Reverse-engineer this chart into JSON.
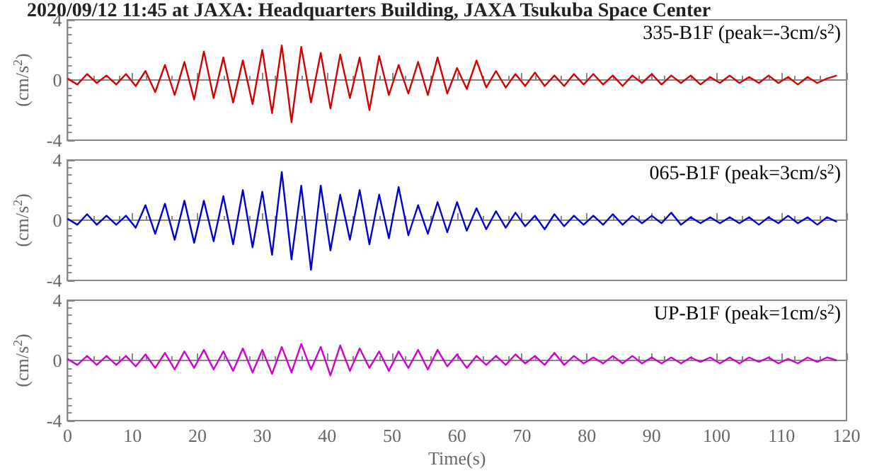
{
  "chart_data": [
    {
      "type": "line",
      "title": "2020/09/12 11:45 at JAXA: Headquarters Building, JAXA Tsukuba Space Center",
      "ylabel": "(cm/s$^{2}$)",
      "annotations": [
        "335-B1F (peak=-3cm/s$^{2}$)"
      ],
      "tick_labels": "y",
      "xlim": [
        0,
        120
      ],
      "xticks": [
        0,
        10,
        20,
        30,
        40,
        50,
        60,
        70,
        80,
        90,
        100,
        110,
        120
      ],
      "ylim": [
        -4,
        4
      ],
      "yticks": [
        -4,
        0,
        4
      ],
      "x": [
        0,
        1.5,
        3,
        4.5,
        6,
        7.5,
        9,
        10.5,
        12,
        13.5,
        15,
        16.5,
        18,
        19.5,
        21,
        22.5,
        24,
        25.5,
        27,
        28.5,
        30,
        31.5,
        33,
        34.5,
        36,
        37.5,
        39,
        40.5,
        42,
        43.5,
        45,
        46.5,
        48,
        49.5,
        51,
        52.5,
        54,
        55.5,
        57,
        58.5,
        60,
        61.5,
        63,
        64.5,
        66,
        67.5,
        69,
        70.5,
        72,
        73.5,
        75,
        76.5,
        78,
        79.5,
        81,
        82.5,
        84,
        85.5,
        87,
        88.5,
        90,
        91.5,
        93,
        94.5,
        96,
        97.5,
        99,
        100.5,
        102,
        103.5,
        105,
        106.5,
        108,
        109.5,
        111,
        112.5,
        114,
        115.5,
        117,
        118.5
      ],
      "series": [
        {
          "color": "#d40000",
          "values": [
            0.1,
            -0.3,
            0.4,
            -0.2,
            0.3,
            -0.3,
            0.4,
            -0.4,
            0.6,
            -0.8,
            1.0,
            -1.0,
            1.2,
            -1.3,
            1.9,
            -1.2,
            1.5,
            -1.5,
            1.3,
            -1.6,
            2.0,
            -2.2,
            2.3,
            -2.8,
            2.2,
            -1.5,
            1.8,
            -1.9,
            1.7,
            -1.2,
            1.5,
            -2.0,
            1.6,
            -1.0,
            1.0,
            -0.9,
            1.2,
            -1.0,
            1.5,
            -0.9,
            0.8,
            -0.6,
            1.3,
            -0.5,
            0.6,
            -0.5,
            0.4,
            -0.4,
            0.5,
            -0.4,
            0.3,
            -0.4,
            0.4,
            -0.3,
            0.4,
            -0.3,
            0.3,
            -0.4,
            0.3,
            -0.2,
            0.4,
            -0.3,
            0.3,
            -0.2,
            0.3,
            -0.3,
            0.2,
            -0.2,
            0.3,
            -0.2,
            0.2,
            -0.2,
            0.3,
            -0.2,
            0.2,
            -0.3,
            0.2,
            -0.2,
            0.1,
            0.3
          ]
        }
      ]
    },
    {
      "type": "line",
      "ylabel": "(cm/s$^{2}$)",
      "annotations": [
        "065-B1F (peak=3cm/s$^{2}$)"
      ],
      "tick_labels": "y",
      "xlim": [
        0,
        120
      ],
      "xticks": [
        0,
        10,
        20,
        30,
        40,
        50,
        60,
        70,
        80,
        90,
        100,
        110,
        120
      ],
      "ylim": [
        -4,
        4
      ],
      "yticks": [
        -4,
        0,
        4
      ],
      "x": [
        0,
        1.5,
        3,
        4.5,
        6,
        7.5,
        9,
        10.5,
        12,
        13.5,
        15,
        16.5,
        18,
        19.5,
        21,
        22.5,
        24,
        25.5,
        27,
        28.5,
        30,
        31.5,
        33,
        34.5,
        36,
        37.5,
        39,
        40.5,
        42,
        43.5,
        45,
        46.5,
        48,
        49.5,
        51,
        52.5,
        54,
        55.5,
        57,
        58.5,
        60,
        61.5,
        63,
        64.5,
        66,
        67.5,
        69,
        70.5,
        72,
        73.5,
        75,
        76.5,
        78,
        79.5,
        81,
        82.5,
        84,
        85.5,
        87,
        88.5,
        90,
        91.5,
        93,
        94.5,
        96,
        97.5,
        99,
        100.5,
        102,
        103.5,
        105,
        106.5,
        108,
        109.5,
        111,
        112.5,
        114,
        115.5,
        117,
        118.5
      ],
      "series": [
        {
          "color": "#0000d0",
          "values": [
            0.1,
            -0.3,
            0.4,
            -0.3,
            0.3,
            -0.3,
            0.3,
            -0.5,
            1.0,
            -0.9,
            1.1,
            -1.3,
            1.3,
            -1.5,
            1.3,
            -1.4,
            1.6,
            -1.6,
            2.0,
            -1.8,
            1.9,
            -2.3,
            3.2,
            -2.6,
            2.3,
            -3.3,
            2.3,
            -2.0,
            1.7,
            -1.3,
            2.0,
            -1.6,
            1.7,
            -1.2,
            2.2,
            -1.0,
            1.0,
            -0.9,
            1.2,
            -0.8,
            1.2,
            -0.7,
            0.8,
            -0.6,
            0.6,
            -0.5,
            0.5,
            -0.4,
            0.3,
            -0.6,
            0.4,
            -0.4,
            0.3,
            -0.3,
            0.3,
            -0.3,
            0.4,
            -0.3,
            0.3,
            -0.2,
            0.3,
            -0.2,
            0.5,
            -0.3,
            0.2,
            -0.2,
            0.2,
            -0.2,
            0.2,
            -0.2,
            0.2,
            -0.3,
            0.2,
            -0.2,
            0.3,
            -0.2,
            0.2,
            -0.3,
            0.2,
            -0.1
          ]
        }
      ]
    },
    {
      "type": "line",
      "xlabel": "Time(s)",
      "ylabel": "(cm/s$^{2}$)",
      "annotations": [
        "UP-B1F (peak=1cm/s$^{2}$)"
      ],
      "xlim": [
        0,
        120
      ],
      "xticks": [
        0,
        10,
        20,
        30,
        40,
        50,
        60,
        70,
        80,
        90,
        100,
        110,
        120
      ],
      "ylim": [
        -4,
        4
      ],
      "yticks": [
        -4,
        0,
        4
      ],
      "x": [
        0,
        1.5,
        3,
        4.5,
        6,
        7.5,
        9,
        10.5,
        12,
        13.5,
        15,
        16.5,
        18,
        19.5,
        21,
        22.5,
        24,
        25.5,
        27,
        28.5,
        30,
        31.5,
        33,
        34.5,
        36,
        37.5,
        39,
        40.5,
        42,
        43.5,
        45,
        46.5,
        48,
        49.5,
        51,
        52.5,
        54,
        55.5,
        57,
        58.5,
        60,
        61.5,
        63,
        64.5,
        66,
        67.5,
        69,
        70.5,
        72,
        73.5,
        75,
        76.5,
        78,
        79.5,
        81,
        82.5,
        84,
        85.5,
        87,
        88.5,
        90,
        91.5,
        93,
        94.5,
        96,
        97.5,
        99,
        100.5,
        102,
        103.5,
        105,
        106.5,
        108,
        109.5,
        111,
        112.5,
        114,
        115.5,
        117,
        118.5
      ],
      "series": [
        {
          "color": "#d000d0",
          "values": [
            0.1,
            -0.3,
            0.3,
            -0.3,
            0.3,
            -0.3,
            0.3,
            -0.4,
            0.4,
            -0.5,
            0.5,
            -0.6,
            0.6,
            -0.5,
            0.7,
            -0.6,
            0.6,
            -0.7,
            0.8,
            -0.8,
            0.7,
            -0.9,
            0.9,
            -0.8,
            1.1,
            -0.6,
            0.9,
            -1.0,
            1.0,
            -0.7,
            0.8,
            -0.5,
            0.6,
            -0.7,
            0.6,
            -0.5,
            0.7,
            -0.6,
            0.7,
            -0.4,
            0.4,
            -0.5,
            0.3,
            -0.3,
            0.3,
            -0.3,
            0.4,
            -0.2,
            0.3,
            -0.3,
            0.5,
            -0.3,
            0.3,
            -0.2,
            0.2,
            -0.2,
            0.3,
            -0.2,
            0.3,
            -0.2,
            0.2,
            -0.2,
            0.2,
            -0.2,
            0.2,
            -0.1,
            0.2,
            -0.2,
            0.2,
            -0.2,
            0.2,
            -0.1,
            0.2,
            -0.2,
            0.1,
            -0.2,
            0.2,
            -0.1,
            0.2,
            0.0
          ]
        }
      ]
    }
  ]
}
